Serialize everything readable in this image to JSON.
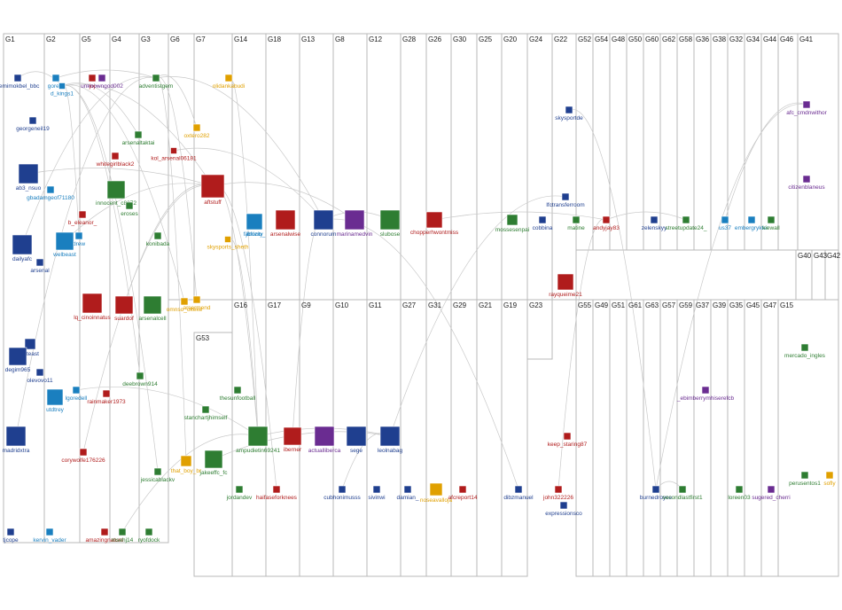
{
  "groups": [
    "G1",
    "G2",
    "G5",
    "G4",
    "G3",
    "G6",
    "G7",
    "G14",
    "G18",
    "G13",
    "G8",
    "G12",
    "G28",
    "G26",
    "G30",
    "G25",
    "G20",
    "G24",
    "G22",
    "G52",
    "G54",
    "G48",
    "G50",
    "G60",
    "G62",
    "G58",
    "G36",
    "G38",
    "G32",
    "G34",
    "G44",
    "G46",
    "G41",
    "G40",
    "G43",
    "G42",
    "G16",
    "G17",
    "G9",
    "G10",
    "G11",
    "G27",
    "G31",
    "G29",
    "G21",
    "G19",
    "G23",
    "G55",
    "G49",
    "G51",
    "G61",
    "G63",
    "G57",
    "G59",
    "G37",
    "G39",
    "G35",
    "G45",
    "G47",
    "G15",
    "G53"
  ],
  "nodes": [
    {
      "label": "semimokbel_bbc",
      "color": "#1f3f8f"
    },
    {
      "label": "gore_f",
      "color": "#1a7fbf"
    },
    {
      "label": "d_kings1",
      "color": "#1a7fbf"
    },
    {
      "label": "joj",
      "color": "#b01c1c"
    },
    {
      "label": "unknowngod002",
      "color": "#6a2c91"
    },
    {
      "label": "adventistgem",
      "color": "#2e7d32"
    },
    {
      "label": "olidankabudi",
      "color": "#e0a000"
    },
    {
      "label": "georgeneil19",
      "color": "#1f3f8f"
    },
    {
      "label": "whitegirlblack2",
      "color": "#b01c1c"
    },
    {
      "label": "arsenaltaktai",
      "color": "#2e7d32"
    },
    {
      "label": "oxtero282",
      "color": "#e0a000"
    },
    {
      "label": "ab3_nsuo",
      "color": "#1f3f8f"
    },
    {
      "label": "kol_arsenal06181",
      "color": "#b01c1c"
    },
    {
      "label": "gbadamgeof71180",
      "color": "#1a7fbf"
    },
    {
      "label": "innocent_c8372",
      "color": "#2e7d32"
    },
    {
      "label": "aftstuff",
      "color": "#b01c1c"
    },
    {
      "label": "b_eleanor_",
      "color": "#b01c1c"
    },
    {
      "label": "eroses",
      "color": "#2e7d32"
    },
    {
      "label": "drew",
      "color": "#1a7fbf"
    },
    {
      "label": "dailyafc",
      "color": "#1f3f8f"
    },
    {
      "label": "welbeast",
      "color": "#1a7fbf"
    },
    {
      "label": "arsenal",
      "color": "#1f3f8f"
    },
    {
      "label": "konibada",
      "color": "#2e7d32"
    },
    {
      "label": "fabrizio_",
      "color": "#1a7fbf"
    },
    {
      "label": "skysports_sheth",
      "color": "#e0a000"
    },
    {
      "label": "lq_cinoinnatus",
      "color": "#b01c1c"
    },
    {
      "label": "arsenalcell",
      "color": "#2e7d32"
    },
    {
      "label": "omnso_okeke",
      "color": "#e0a000"
    },
    {
      "label": "arsermend",
      "color": "#e0a000"
    },
    {
      "label": "suardof",
      "color": "#b01c1c"
    },
    {
      "label": "arteast",
      "color": "#1f3f8f"
    },
    {
      "label": "degim965",
      "color": "#1f3f8f"
    },
    {
      "label": "olevovo11",
      "color": "#1f3f8f"
    },
    {
      "label": "lgoredell",
      "color": "#1a7fbf"
    },
    {
      "label": "utdtrey",
      "color": "#1a7fbf"
    },
    {
      "label": "rainmaker1973",
      "color": "#b01c1c"
    },
    {
      "label": "deebrown914",
      "color": "#2e7d32"
    },
    {
      "label": "madridxtra",
      "color": "#1f3f8f"
    },
    {
      "label": "corywolfe176226",
      "color": "#b01c1c"
    },
    {
      "label": "tjcope",
      "color": "#1f3f8f"
    },
    {
      "label": "kervin_vader",
      "color": "#1a7fbf"
    },
    {
      "label": "amazingnature",
      "color": "#b01c1c"
    },
    {
      "label": "msehj14",
      "color": "#2e7d32"
    },
    {
      "label": "ryofdock",
      "color": "#2e7d32"
    },
    {
      "label": "jbfooty",
      "color": "#1a7fbf"
    },
    {
      "label": "arsenalwise",
      "color": "#b01c1c"
    },
    {
      "label": "connorum",
      "color": "#1f3f8f"
    },
    {
      "label": "marinamedvin",
      "color": "#6a2c91"
    },
    {
      "label": "slubose",
      "color": "#2e7d32"
    },
    {
      "label": "chopperhwontmiss",
      "color": "#b01c1c"
    },
    {
      "label": "cobbina",
      "color": "#1f3f8f"
    },
    {
      "label": "mossesenpai",
      "color": "#2e7d32"
    },
    {
      "label": "lfctransferroom",
      "color": "#1f3f8f"
    },
    {
      "label": "skysportde",
      "color": "#1f3f8f"
    },
    {
      "label": "rayqueime21",
      "color": "#b01c1c"
    },
    {
      "label": "matine",
      "color": "#2e7d32"
    },
    {
      "label": "andyjay83",
      "color": "#b01c1c"
    },
    {
      "label": "zelenskyy",
      "color": "#1f3f8f"
    },
    {
      "label": "streetupdate24_",
      "color": "#2e7d32"
    },
    {
      "label": "us37",
      "color": "#1a7fbf"
    },
    {
      "label": "embergrykter",
      "color": "#1a7fbf"
    },
    {
      "label": "kiewall",
      "color": "#2e7d32"
    },
    {
      "label": "afc_cmdnwithor",
      "color": "#6a2c91"
    },
    {
      "label": "citizenblaneus",
      "color": "#6a2c91"
    },
    {
      "label": "mercado_ingles",
      "color": "#2e7d32"
    },
    {
      "label": "perusentos1",
      "color": "#2e7d32"
    },
    {
      "label": "sofly",
      "color": "#e0a000"
    },
    {
      "label": "thesunfootball",
      "color": "#2e7d32"
    },
    {
      "label": "jordandev",
      "color": "#2e7d32"
    },
    {
      "label": "ampudietin69241",
      "color": "#2e7d32"
    },
    {
      "label": "jakeeffc_fc",
      "color": "#2e7d32"
    },
    {
      "label": "stanchartjhimself",
      "color": "#2e7d32"
    },
    {
      "label": "jessicablackv",
      "color": "#2e7d32"
    },
    {
      "label": "that_boy_br",
      "color": "#e0a000"
    },
    {
      "label": "haifaseforknees",
      "color": "#b01c1c"
    },
    {
      "label": "iberner",
      "color": "#b01c1c"
    },
    {
      "label": "actualliberca",
      "color": "#6a2c91"
    },
    {
      "label": "sege",
      "color": "#1f3f8f"
    },
    {
      "label": "leolnabag",
      "color": "#1f3f8f"
    },
    {
      "label": "cubhonimusss",
      "color": "#1f3f8f"
    },
    {
      "label": "sivinwi",
      "color": "#1f3f8f"
    },
    {
      "label": "damian_",
      "color": "#1f3f8f"
    },
    {
      "label": "noseavalloja",
      "color": "#e0a000"
    },
    {
      "label": "afcreport14",
      "color": "#b01c1c"
    },
    {
      "label": "dibzmanuel",
      "color": "#1f3f8f"
    },
    {
      "label": "john322226",
      "color": "#b01c1c"
    },
    {
      "label": "keep_staring87",
      "color": "#b01c1c"
    },
    {
      "label": "expressionsco",
      "color": "#1f3f8f"
    },
    {
      "label": "burnedroyce",
      "color": "#1f3f8f"
    },
    {
      "label": "secondlastfirst1",
      "color": "#2e7d32"
    },
    {
      "label": "loreen03",
      "color": "#2e7d32"
    },
    {
      "label": "sugered_cherri",
      "color": "#6a2c91"
    },
    {
      "label": "_ebimberrymhiserefcb",
      "color": "#6a2c91"
    }
  ]
}
